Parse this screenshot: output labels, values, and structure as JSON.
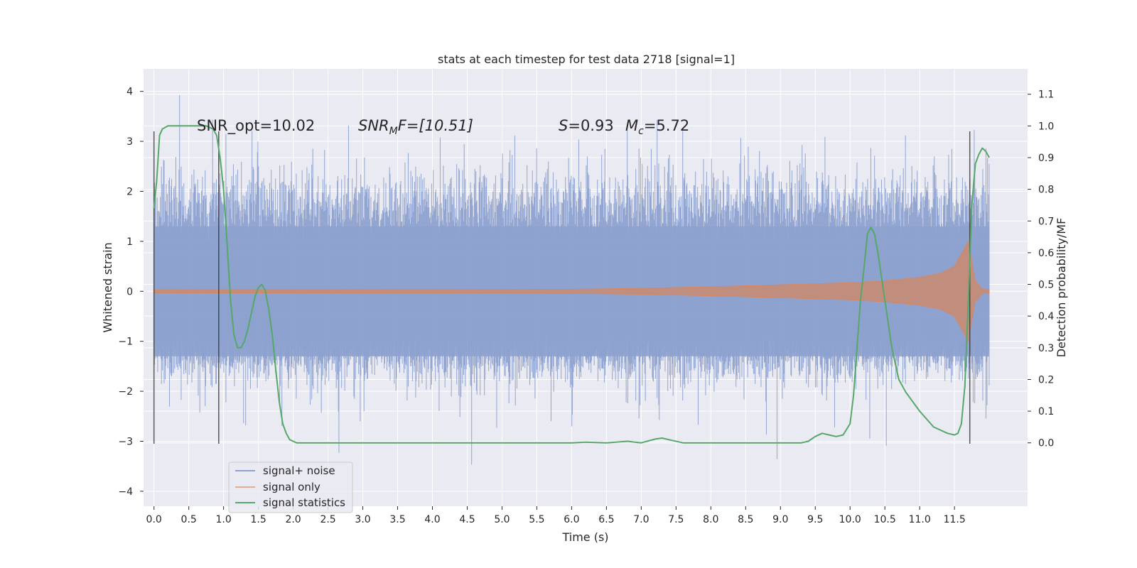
{
  "chart_data": {
    "type": "line",
    "title": "stats at each timestep for test data 2718 [signal=1]",
    "xlabel": "Time (s)",
    "ylabel": "Whitened strain",
    "y2label": "Detection probability/MF",
    "xlim": [
      -0.15,
      12.55
    ],
    "ylim": [
      -4.3,
      4.45
    ],
    "y2lim": [
      -0.2,
      1.18
    ],
    "x_ticks": [
      "0.0",
      "0.5",
      "1.0",
      "1.5",
      "2.0",
      "2.5",
      "3.0",
      "3.5",
      "4.0",
      "4.5",
      "5.0",
      "5.5",
      "6.0",
      "6.5",
      "7.0",
      "7.5",
      "8.0",
      "8.5",
      "9.0",
      "9.5",
      "10.0",
      "10.5",
      "11.0",
      "11.5"
    ],
    "y_ticks": [
      "4",
      "3",
      "2",
      "1",
      "0",
      "−1",
      "−2",
      "−3",
      "−4"
    ],
    "y2_ticks": [
      "1.1",
      "1.0",
      "0.9",
      "0.8",
      "0.7",
      "0.6",
      "0.5",
      "0.4",
      "0.3",
      "0.2",
      "0.1",
      "0.0"
    ],
    "grid": true,
    "legend_position": "lower-left",
    "annotations": {
      "snr_opt": "SNR_opt=10.02",
      "snr_mf_label": "SNR",
      "snr_mf_sub": "M",
      "snr_mf_rest": "F=[10.51]",
      "s_label": "S",
      "s_value": "=0.93",
      "mc_label": "M",
      "mc_sub": "c",
      "mc_value": "=5.72"
    },
    "colors": {
      "background": "#eaeaf2",
      "grid": "#ffffff",
      "noise": "#8ea2cf",
      "signal": "#dd8452",
      "stat": "#55a868",
      "vline": "#333333"
    },
    "series": [
      {
        "name": "signal+ noise",
        "kind": "noise",
        "x_range": [
          0.0,
          12.0
        ],
        "typical_abs": 1.35,
        "max_abs": 4.1
      },
      {
        "name": "signal only",
        "kind": "chirp_envelope",
        "x": [
          0.0,
          6.0,
          7.0,
          8.0,
          9.0,
          9.5,
          10.0,
          10.5,
          11.0,
          11.3,
          11.5,
          11.6,
          11.7,
          11.8,
          11.9,
          12.0
        ],
        "y": [
          0.03,
          0.04,
          0.06,
          0.09,
          0.13,
          0.15,
          0.17,
          0.21,
          0.28,
          0.36,
          0.5,
          0.75,
          1.0,
          0.2,
          0.05,
          0.03
        ]
      },
      {
        "name": "signal statistics",
        "kind": "line",
        "axis": "right",
        "x": [
          0.0,
          0.04,
          0.08,
          0.12,
          0.2,
          0.35,
          0.6,
          0.75,
          0.85,
          0.9,
          0.95,
          1.0,
          1.05,
          1.1,
          1.15,
          1.2,
          1.25,
          1.3,
          1.35,
          1.4,
          1.45,
          1.5,
          1.55,
          1.6,
          1.65,
          1.7,
          1.75,
          1.8,
          1.85,
          1.9,
          1.95,
          2.0,
          2.05,
          2.1,
          2.2,
          2.4,
          3.0,
          4.0,
          5.0,
          5.5,
          6.0,
          6.2,
          6.5,
          6.8,
          7.0,
          7.2,
          7.3,
          7.4,
          7.6,
          8.0,
          9.0,
          9.3,
          9.4,
          9.5,
          9.6,
          9.7,
          9.8,
          9.9,
          10.0,
          10.05,
          10.1,
          10.15,
          10.2,
          10.25,
          10.3,
          10.35,
          10.4,
          10.5,
          10.6,
          10.7,
          10.8,
          11.0,
          11.2,
          11.4,
          11.5,
          11.55,
          11.6,
          11.65,
          11.7,
          11.75,
          11.8,
          11.85,
          11.9,
          11.95,
          12.0
        ],
        "y": [
          0.74,
          0.83,
          0.97,
          0.99,
          1.0,
          1.0,
          1.0,
          1.0,
          0.99,
          0.97,
          0.9,
          0.8,
          0.63,
          0.45,
          0.34,
          0.3,
          0.3,
          0.32,
          0.36,
          0.41,
          0.46,
          0.49,
          0.5,
          0.48,
          0.42,
          0.34,
          0.23,
          0.13,
          0.06,
          0.03,
          0.01,
          0.005,
          0.0,
          0.0,
          0.0,
          0.0,
          0.0,
          0.0,
          0.0,
          0.0,
          0.0,
          0.002,
          0.0,
          0.005,
          0.0,
          0.012,
          0.015,
          0.01,
          0.0,
          0.0,
          0.0,
          0.0,
          0.005,
          0.02,
          0.03,
          0.025,
          0.02,
          0.025,
          0.06,
          0.15,
          0.3,
          0.45,
          0.55,
          0.66,
          0.68,
          0.66,
          0.6,
          0.45,
          0.3,
          0.2,
          0.16,
          0.1,
          0.05,
          0.03,
          0.025,
          0.03,
          0.06,
          0.18,
          0.45,
          0.75,
          0.88,
          0.91,
          0.93,
          0.92,
          0.9
        ]
      }
    ],
    "vlines": [
      {
        "x": 0.0,
        "y_from": -3.05,
        "y_to": 3.2
      },
      {
        "x": 0.93,
        "y_from": -3.05,
        "y_to": 3.2
      },
      {
        "x": 11.72,
        "y_from": -3.05,
        "y_to": 3.2
      }
    ]
  }
}
